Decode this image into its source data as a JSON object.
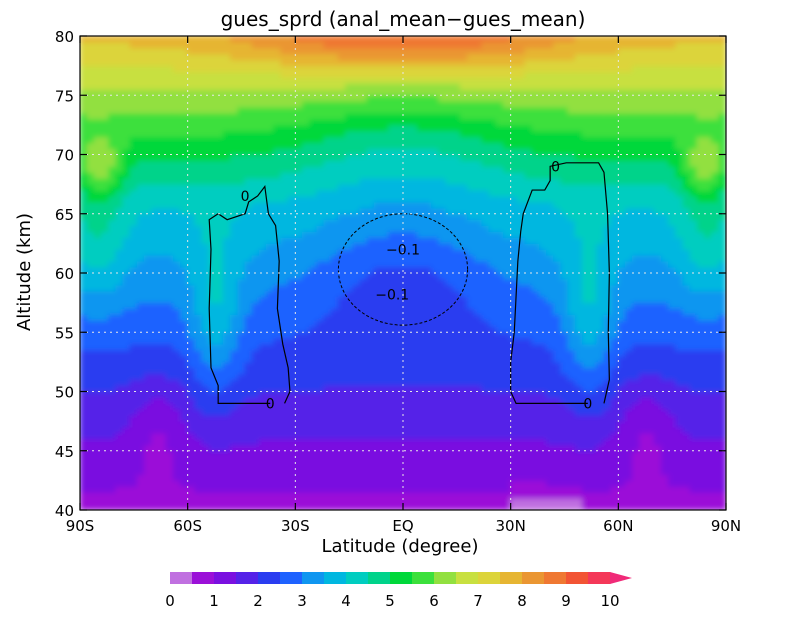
{
  "chart_data": {
    "type": "heatmap",
    "title": "gues_sprd (anal_mean−gues_mean)",
    "xlabel": "Latitude (degree)",
    "ylabel": "Altitude (km)",
    "xlim": [
      -90,
      90
    ],
    "ylim": [
      40,
      80
    ],
    "grid": true,
    "x_ticks": [
      {
        "value": -90,
        "label": "90S"
      },
      {
        "value": -60,
        "label": "60S"
      },
      {
        "value": -30,
        "label": "30S"
      },
      {
        "value": 0,
        "label": "EQ"
      },
      {
        "value": 30,
        "label": "30N"
      },
      {
        "value": 60,
        "label": "60N"
      },
      {
        "value": 90,
        "label": "90N"
      }
    ],
    "y_ticks": [
      {
        "value": 40,
        "label": "40"
      },
      {
        "value": 45,
        "label": "45"
      },
      {
        "value": 50,
        "label": "50"
      },
      {
        "value": 55,
        "label": "55"
      },
      {
        "value": 60,
        "label": "60"
      },
      {
        "value": 65,
        "label": "65"
      },
      {
        "value": 70,
        "label": "70"
      },
      {
        "value": 75,
        "label": "75"
      },
      {
        "value": 80,
        "label": "80"
      }
    ],
    "colorbar": {
      "levels": [
        0,
        0.5,
        1,
        1.5,
        2,
        2.5,
        3,
        3.5,
        4,
        4.5,
        5,
        5.5,
        6,
        6.5,
        7,
        7.5,
        8,
        8.5,
        9,
        9.5,
        10
      ],
      "colors": [
        "#c070e0",
        "#9b10d8",
        "#7a10e0",
        "#5522e8",
        "#2a3df0",
        "#1e62ff",
        "#0f96f0",
        "#00b7e0",
        "#00cdc0",
        "#00d38a",
        "#00d83a",
        "#3ce03c",
        "#92e040",
        "#c8e040",
        "#dcd43a",
        "#e6b532",
        "#ea9632",
        "#ef7832",
        "#f25434",
        "#f43858",
        "#f02a78"
      ],
      "tick_labels": [
        "0",
        "1",
        "2",
        "3",
        "4",
        "5",
        "6",
        "7",
        "8",
        "9",
        "10"
      ],
      "extend": "max"
    },
    "contour_labels": [
      {
        "text": "0",
        "x": -44,
        "y": 66.5
      },
      {
        "text": "0",
        "x": -37,
        "y": 49.0
      },
      {
        "text": "0",
        "x": 42.5,
        "y": 69.0
      },
      {
        "text": "0",
        "x": 51.5,
        "y": 49.0
      },
      {
        "text": "−0.1",
        "x": 0,
        "y": 62.0
      },
      {
        "text": "−0.1",
        "x": -3,
        "y": 58.2
      }
    ]
  }
}
